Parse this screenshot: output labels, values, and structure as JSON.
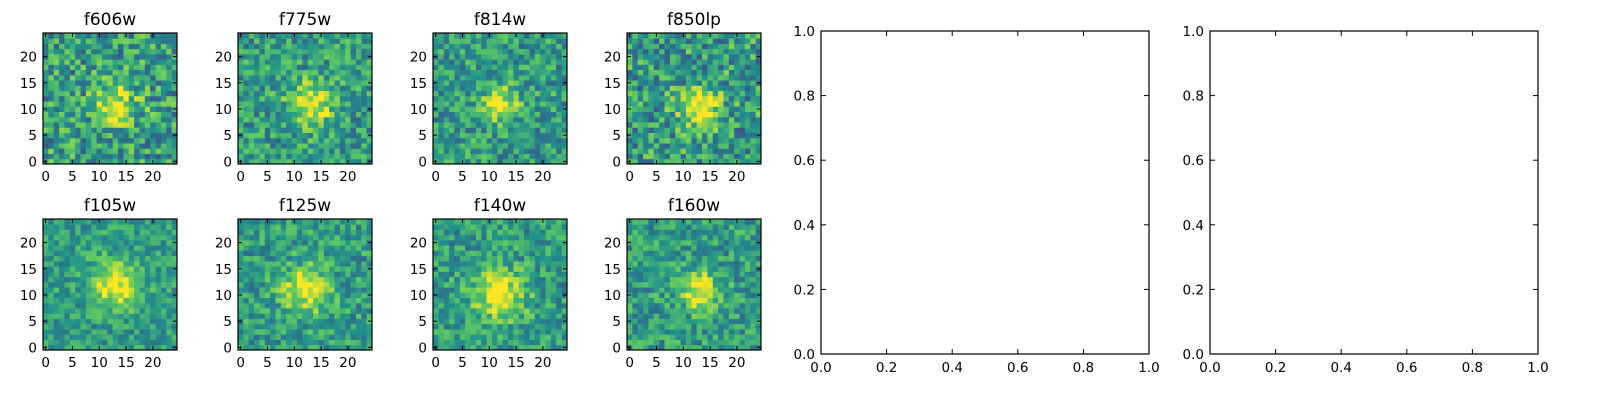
{
  "chart_data": [
    {
      "type": "heatmap",
      "title": "f606w",
      "x_ticks": [
        "0",
        "5",
        "10",
        "15",
        "20"
      ],
      "y_ticks": [
        "0",
        "5",
        "10",
        "15",
        "20"
      ],
      "xlim": [
        -0.5,
        24.5
      ],
      "ylim": [
        -0.5,
        24.5
      ],
      "grid_size": 25,
      "center": [
        13,
        11
      ],
      "peak_sigma": 2.8,
      "noise": 0.55
    },
    {
      "type": "heatmap",
      "title": "f775w",
      "x_ticks": [
        "0",
        "5",
        "10",
        "15",
        "20"
      ],
      "y_ticks": [
        "0",
        "5",
        "10",
        "15",
        "20"
      ],
      "xlim": [
        -0.5,
        24.5
      ],
      "ylim": [
        -0.5,
        24.5
      ],
      "grid_size": 25,
      "center": [
        13,
        11
      ],
      "peak_sigma": 3.0,
      "noise": 0.45
    },
    {
      "type": "heatmap",
      "title": "f814w",
      "x_ticks": [
        "0",
        "5",
        "10",
        "15",
        "20"
      ],
      "y_ticks": [
        "0",
        "5",
        "10",
        "15",
        "20"
      ],
      "xlim": [
        -0.5,
        24.5
      ],
      "ylim": [
        -0.5,
        24.5
      ],
      "grid_size": 25,
      "center": [
        12,
        11
      ],
      "peak_sigma": 2.2,
      "noise": 0.45
    },
    {
      "type": "heatmap",
      "title": "f850lp",
      "x_ticks": [
        "0",
        "5",
        "10",
        "15",
        "20"
      ],
      "y_ticks": [
        "0",
        "5",
        "10",
        "15",
        "20"
      ],
      "xlim": [
        -0.5,
        24.5
      ],
      "ylim": [
        -0.5,
        24.5
      ],
      "grid_size": 25,
      "center": [
        13,
        10
      ],
      "peak_sigma": 2.8,
      "noise": 0.55
    },
    {
      "type": "heatmap",
      "title": "f105w",
      "x_ticks": [
        "0",
        "5",
        "10",
        "15",
        "20"
      ],
      "y_ticks": [
        "0",
        "5",
        "10",
        "15",
        "20"
      ],
      "xlim": [
        -0.5,
        24.5
      ],
      "ylim": [
        -0.5,
        24.5
      ],
      "grid_size": 25,
      "center": [
        13,
        12
      ],
      "peak_sigma": 3.2,
      "noise": 0.35
    },
    {
      "type": "heatmap",
      "title": "f125w",
      "x_ticks": [
        "0",
        "5",
        "10",
        "15",
        "20"
      ],
      "y_ticks": [
        "0",
        "5",
        "10",
        "15",
        "20"
      ],
      "xlim": [
        -0.5,
        24.5
      ],
      "ylim": [
        -0.5,
        24.5
      ],
      "grid_size": 25,
      "center": [
        12,
        11
      ],
      "peak_sigma": 3.0,
      "noise": 0.4
    },
    {
      "type": "heatmap",
      "title": "f140w",
      "x_ticks": [
        "0",
        "5",
        "10",
        "15",
        "20"
      ],
      "y_ticks": [
        "0",
        "5",
        "10",
        "15",
        "20"
      ],
      "xlim": [
        -0.5,
        24.5
      ],
      "ylim": [
        -0.5,
        24.5
      ],
      "grid_size": 25,
      "center": [
        12,
        10
      ],
      "peak_sigma": 3.4,
      "noise": 0.4
    },
    {
      "type": "heatmap",
      "title": "f160w",
      "x_ticks": [
        "0",
        "5",
        "10",
        "15",
        "20"
      ],
      "y_ticks": [
        "0",
        "5",
        "10",
        "15",
        "20"
      ],
      "xlim": [
        -0.5,
        24.5
      ],
      "ylim": [
        -0.5,
        24.5
      ],
      "grid_size": 25,
      "center": [
        13,
        11
      ],
      "peak_sigma": 2.6,
      "noise": 0.4
    },
    {
      "type": "line",
      "title": "",
      "xlim": [
        0.0,
        1.0
      ],
      "ylim": [
        0.0,
        1.0
      ],
      "x_ticks": [
        "0.0",
        "0.2",
        "0.4",
        "0.6",
        "0.8",
        "1.0"
      ],
      "y_ticks": [
        "0.0",
        "0.2",
        "0.4",
        "0.6",
        "0.8",
        "1.0"
      ],
      "series": []
    },
    {
      "type": "line",
      "title": "",
      "xlim": [
        0.0,
        1.0
      ],
      "ylim": [
        0.0,
        1.0
      ],
      "x_ticks": [
        "0.0",
        "0.2",
        "0.4",
        "0.6",
        "0.8",
        "1.0"
      ],
      "y_ticks": [
        "0.0",
        "0.2",
        "0.4",
        "0.6",
        "0.8",
        "1.0"
      ],
      "series": []
    }
  ],
  "colormap": [
    "#440154",
    "#3b528b",
    "#21918c",
    "#5ec962",
    "#fde725"
  ]
}
